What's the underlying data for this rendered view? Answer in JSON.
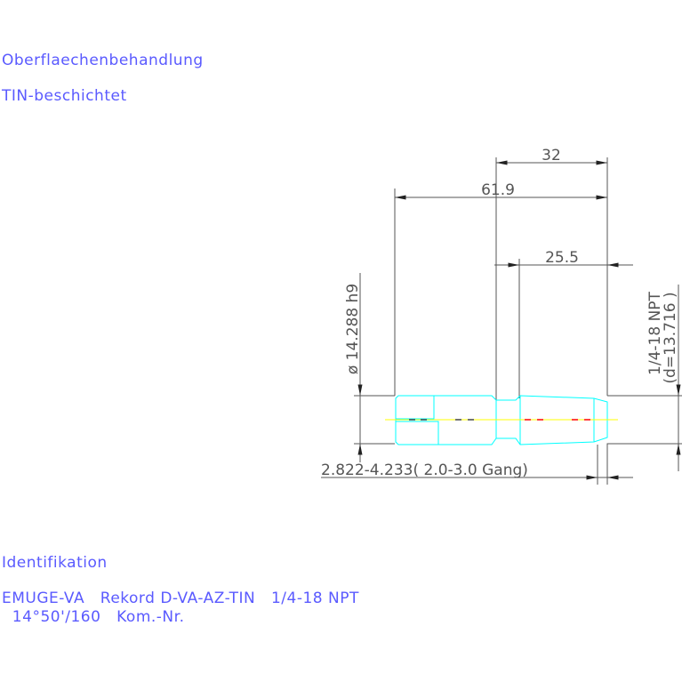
{
  "notes": {
    "surface_label": "Oberflaechenbehandlung",
    "surface_value": "TIN-beschichtet",
    "ident_label": "Identifikation",
    "ident_line1": "EMUGE-VA   Rekord D-VA-AZ-TIN   1/4-18 NPT",
    "ident_line2": "  14°50'/160   Kom.-Nr."
  },
  "dimensions": {
    "len_thread_body": "32",
    "len_total": "61.9",
    "len_thread": "25.5",
    "diameter_shank": "ø 14.288 h9",
    "thread_spec": "1/4-18 NPT",
    "thread_diameter": "(d=13.716 )",
    "chamfer": "2.822-4.233( 2.0-3.0 Gang)"
  },
  "colors": {
    "text": "#5a5aff",
    "dimension": "#555555",
    "part_outline": "#00ffff",
    "centerline": "#ffff00",
    "hidden": "#ff0000"
  }
}
